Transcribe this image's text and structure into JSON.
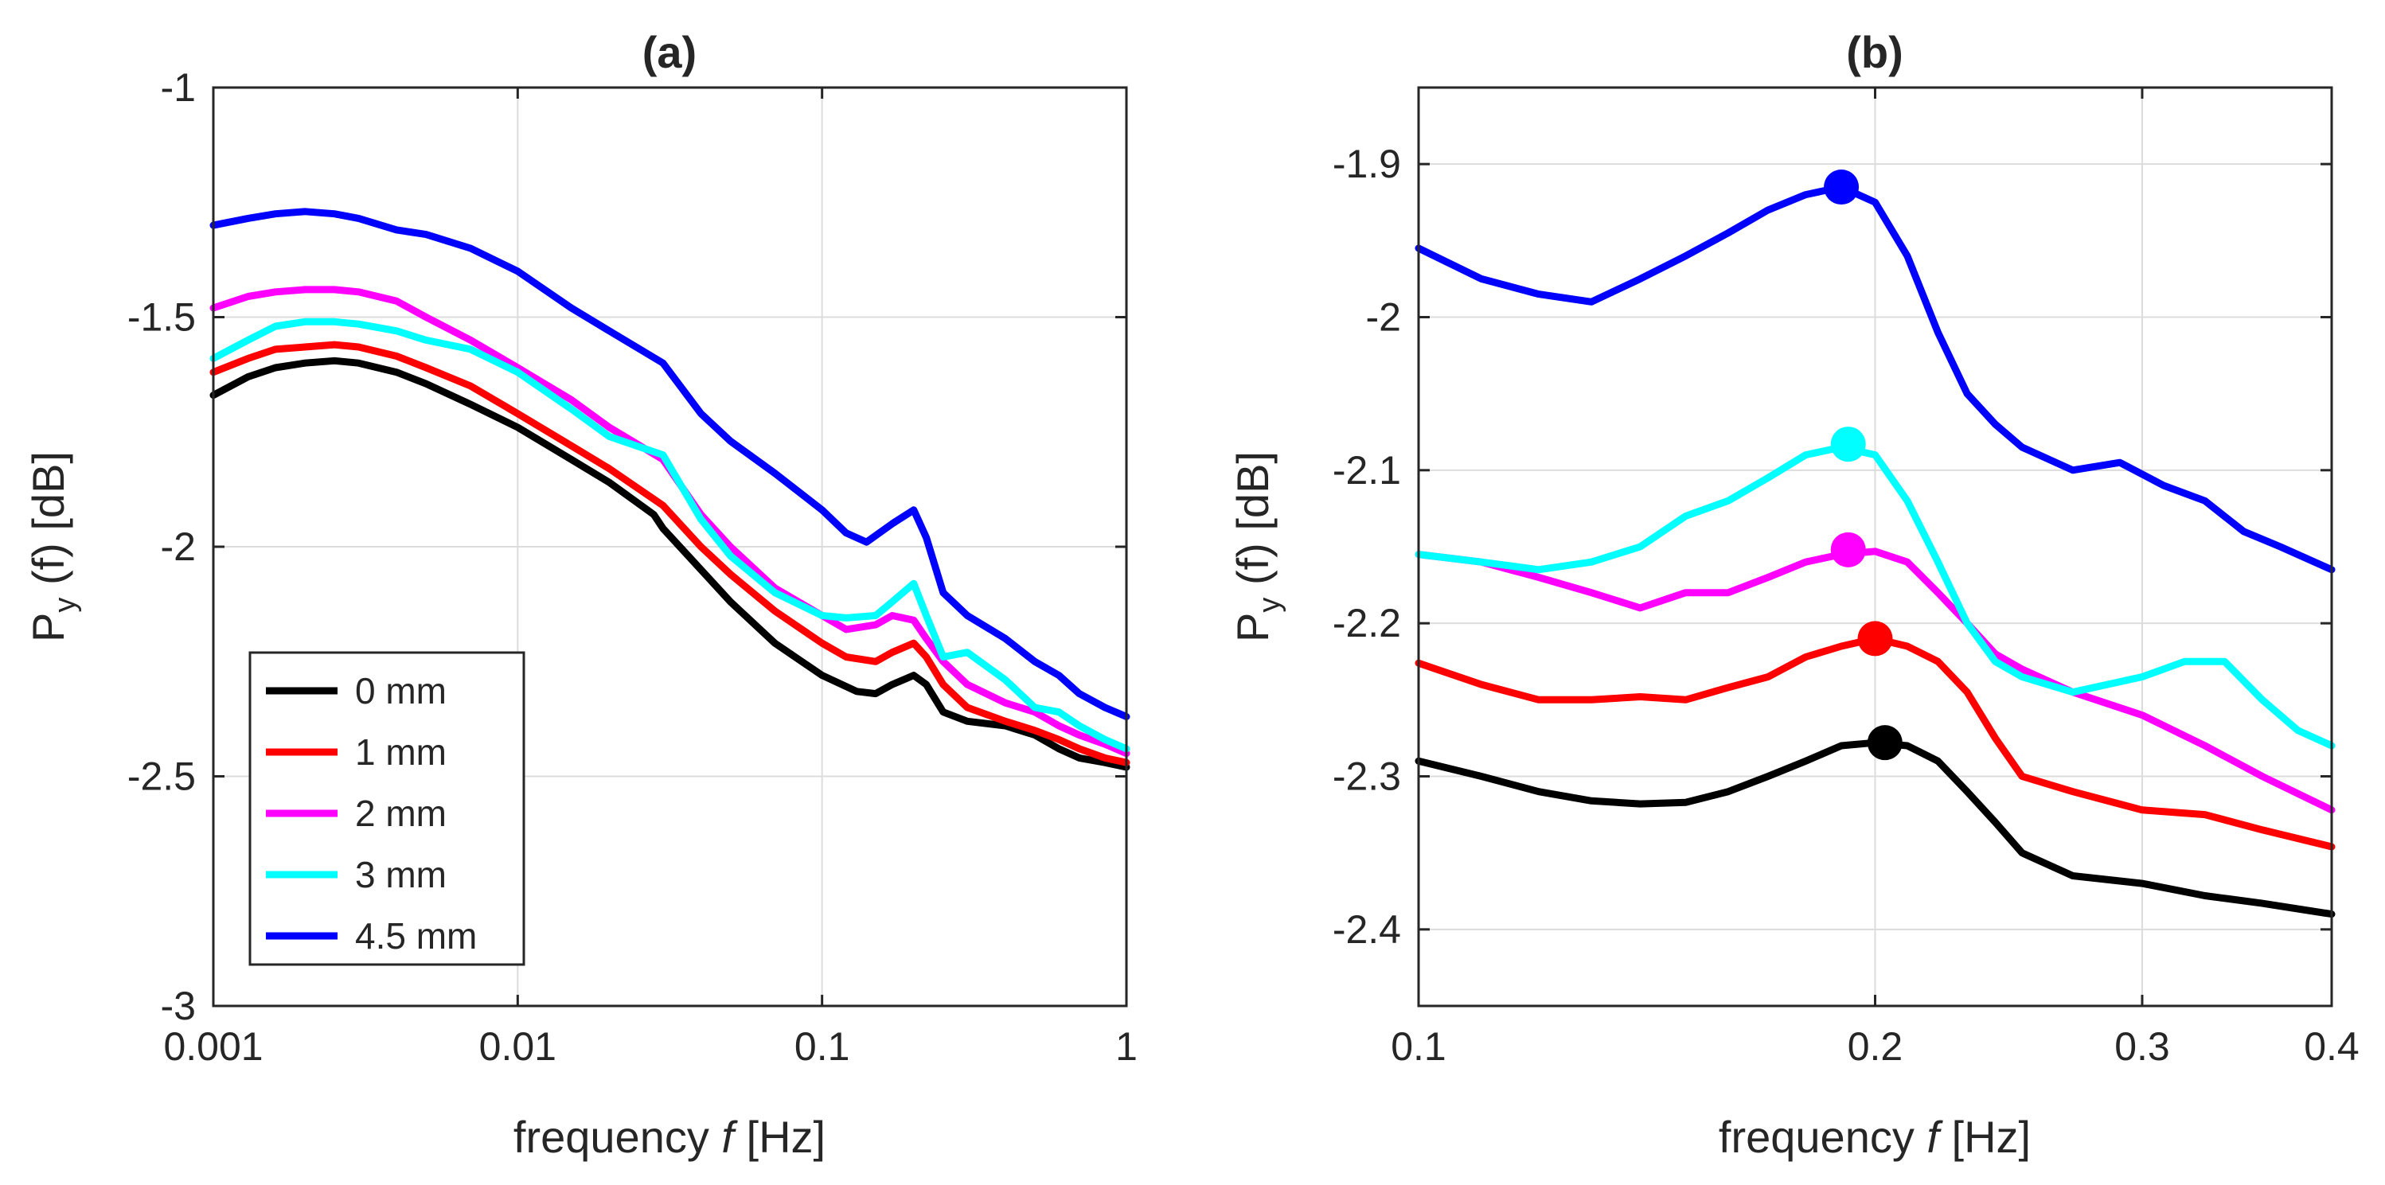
{
  "chart_data": [
    {
      "type": "line",
      "title": "(a)",
      "xscale": "log",
      "xlabel": "frequency",
      "xlabel_var": "f",
      "xlabel_unit": "[Hz]",
      "ylabel_main": "P",
      "ylabel_sub": "y",
      "ylabel_rest": " (f) [dB]",
      "xlim": [
        0.001,
        1
      ],
      "ylim": [
        -3,
        -1
      ],
      "xticks": [
        0.001,
        0.01,
        0.1,
        1
      ],
      "xtick_labels": [
        "0.001",
        "0.01",
        "0.1",
        "1"
      ],
      "yticks": [
        -3,
        -2.5,
        -2,
        -1.5,
        -1
      ],
      "ytick_labels": [
        "-3",
        "-2.5",
        "-2",
        "-1.5",
        "-1"
      ],
      "grid": true,
      "legend_position": "bottom-left",
      "series": [
        {
          "name": "0 mm",
          "color": "#000000",
          "x": [
            0.001,
            0.0013,
            0.0016,
            0.002,
            0.0025,
            0.003,
            0.004,
            0.005,
            0.007,
            0.01,
            0.015,
            0.02,
            0.028,
            0.03,
            0.04,
            0.05,
            0.07,
            0.1,
            0.13,
            0.15,
            0.17,
            0.2,
            0.22,
            0.25,
            0.3,
            0.4,
            0.5,
            0.6,
            0.7,
            0.85,
            1.0
          ],
          "y": [
            -1.67,
            -1.63,
            -1.61,
            -1.6,
            -1.595,
            -1.6,
            -1.62,
            -1.645,
            -1.69,
            -1.74,
            -1.81,
            -1.86,
            -1.93,
            -1.96,
            -2.05,
            -2.12,
            -2.21,
            -2.28,
            -2.315,
            -2.32,
            -2.3,
            -2.28,
            -2.3,
            -2.36,
            -2.38,
            -2.39,
            -2.41,
            -2.44,
            -2.46,
            -2.47,
            -2.48
          ]
        },
        {
          "name": "1 mm",
          "color": "#ff0000",
          "x": [
            0.001,
            0.0013,
            0.0016,
            0.002,
            0.0025,
            0.003,
            0.004,
            0.005,
            0.007,
            0.01,
            0.015,
            0.02,
            0.03,
            0.04,
            0.05,
            0.07,
            0.1,
            0.12,
            0.15,
            0.17,
            0.2,
            0.22,
            0.25,
            0.3,
            0.4,
            0.5,
            0.6,
            0.7,
            0.85,
            1.0
          ],
          "y": [
            -1.62,
            -1.59,
            -1.57,
            -1.565,
            -1.56,
            -1.565,
            -1.585,
            -1.61,
            -1.65,
            -1.71,
            -1.78,
            -1.83,
            -1.91,
            -2.0,
            -2.06,
            -2.14,
            -2.21,
            -2.24,
            -2.25,
            -2.23,
            -2.21,
            -2.24,
            -2.3,
            -2.35,
            -2.38,
            -2.4,
            -2.42,
            -2.44,
            -2.46,
            -2.47
          ]
        },
        {
          "name": "2 mm",
          "color": "#ff00ff",
          "x": [
            0.001,
            0.0013,
            0.0016,
            0.002,
            0.0025,
            0.003,
            0.004,
            0.005,
            0.007,
            0.01,
            0.015,
            0.02,
            0.03,
            0.04,
            0.05,
            0.07,
            0.1,
            0.12,
            0.15,
            0.17,
            0.2,
            0.22,
            0.25,
            0.3,
            0.4,
            0.5,
            0.6,
            0.7,
            0.85,
            1.0
          ],
          "y": [
            -1.48,
            -1.455,
            -1.445,
            -1.44,
            -1.44,
            -1.445,
            -1.465,
            -1.5,
            -1.55,
            -1.61,
            -1.68,
            -1.74,
            -1.81,
            -1.93,
            -2.0,
            -2.09,
            -2.15,
            -2.18,
            -2.17,
            -2.15,
            -2.16,
            -2.2,
            -2.25,
            -2.3,
            -2.34,
            -2.36,
            -2.39,
            -2.41,
            -2.43,
            -2.45
          ]
        },
        {
          "name": "3 mm",
          "color": "#00ffff",
          "x": [
            0.001,
            0.0013,
            0.0016,
            0.002,
            0.0025,
            0.003,
            0.004,
            0.005,
            0.007,
            0.01,
            0.015,
            0.02,
            0.03,
            0.04,
            0.05,
            0.07,
            0.1,
            0.12,
            0.15,
            0.17,
            0.2,
            0.22,
            0.25,
            0.3,
            0.4,
            0.5,
            0.6,
            0.7,
            0.85,
            1.0
          ],
          "y": [
            -1.59,
            -1.55,
            -1.52,
            -1.51,
            -1.51,
            -1.515,
            -1.53,
            -1.55,
            -1.57,
            -1.62,
            -1.7,
            -1.76,
            -1.8,
            -1.94,
            -2.02,
            -2.1,
            -2.15,
            -2.155,
            -2.15,
            -2.12,
            -2.08,
            -2.15,
            -2.24,
            -2.23,
            -2.29,
            -2.35,
            -2.36,
            -2.39,
            -2.42,
            -2.44
          ]
        },
        {
          "name": "4.5 mm",
          "color": "#0000ff",
          "x": [
            0.001,
            0.0013,
            0.0016,
            0.002,
            0.0025,
            0.003,
            0.004,
            0.005,
            0.007,
            0.01,
            0.015,
            0.02,
            0.03,
            0.04,
            0.05,
            0.07,
            0.1,
            0.12,
            0.14,
            0.17,
            0.2,
            0.22,
            0.25,
            0.3,
            0.4,
            0.5,
            0.6,
            0.7,
            0.85,
            1.0
          ],
          "y": [
            -1.3,
            -1.285,
            -1.275,
            -1.27,
            -1.275,
            -1.285,
            -1.31,
            -1.32,
            -1.35,
            -1.4,
            -1.48,
            -1.53,
            -1.6,
            -1.71,
            -1.77,
            -1.84,
            -1.92,
            -1.97,
            -1.99,
            -1.95,
            -1.92,
            -1.98,
            -2.1,
            -2.15,
            -2.2,
            -2.25,
            -2.28,
            -2.32,
            -2.35,
            -2.37
          ]
        }
      ]
    },
    {
      "type": "line",
      "title": "(b)",
      "xscale": "log",
      "xlabel": "frequency",
      "xlabel_var": "f",
      "xlabel_unit": "[Hz]",
      "ylabel_main": "P",
      "ylabel_sub": "y",
      "ylabel_rest": " (f) [dB]",
      "xlim": [
        0.1,
        0.4
      ],
      "ylim": [
        -2.45,
        -1.85
      ],
      "xticks": [
        0.1,
        0.2,
        0.3,
        0.4
      ],
      "xtick_labels": [
        "0.1",
        "0.2",
        "0.3",
        "0.4"
      ],
      "yticks": [
        -2.4,
        -2.3,
        -2.2,
        -2.1,
        -2.0,
        -1.9
      ],
      "ytick_labels": [
        "-2.4",
        "-2.3",
        "-2.2",
        "-2.1",
        "-2",
        "-1.9"
      ],
      "grid": true,
      "series": [
        {
          "name": "0 mm",
          "color": "#000000",
          "x": [
            0.1,
            0.11,
            0.12,
            0.13,
            0.14,
            0.15,
            0.16,
            0.17,
            0.18,
            0.19,
            0.2,
            0.21,
            0.22,
            0.23,
            0.24,
            0.25,
            0.27,
            0.3,
            0.33,
            0.36,
            0.4
          ],
          "y": [
            -2.29,
            -2.3,
            -2.31,
            -2.316,
            -2.318,
            -2.317,
            -2.31,
            -2.3,
            -2.29,
            -2.28,
            -2.278,
            -2.28,
            -2.29,
            -2.31,
            -2.33,
            -2.35,
            -2.365,
            -2.37,
            -2.378,
            -2.383,
            -2.39
          ],
          "peak": {
            "x": 0.203,
            "y": -2.278
          }
        },
        {
          "name": "1 mm",
          "color": "#ff0000",
          "x": [
            0.1,
            0.11,
            0.12,
            0.13,
            0.14,
            0.15,
            0.16,
            0.17,
            0.18,
            0.19,
            0.2,
            0.21,
            0.22,
            0.23,
            0.24,
            0.25,
            0.27,
            0.3,
            0.33,
            0.36,
            0.4
          ],
          "y": [
            -2.226,
            -2.24,
            -2.25,
            -2.25,
            -2.248,
            -2.25,
            -2.242,
            -2.235,
            -2.222,
            -2.215,
            -2.21,
            -2.215,
            -2.225,
            -2.245,
            -2.275,
            -2.3,
            -2.31,
            -2.322,
            -2.325,
            -2.335,
            -2.346
          ],
          "peak": {
            "x": 0.2,
            "y": -2.21
          }
        },
        {
          "name": "2 mm",
          "color": "#ff00ff",
          "x": [
            0.1,
            0.11,
            0.12,
            0.13,
            0.14,
            0.15,
            0.16,
            0.17,
            0.18,
            0.19,
            0.2,
            0.21,
            0.22,
            0.23,
            0.24,
            0.25,
            0.27,
            0.3,
            0.33,
            0.36,
            0.4
          ],
          "y": [
            -2.155,
            -2.16,
            -2.17,
            -2.18,
            -2.19,
            -2.18,
            -2.18,
            -2.17,
            -2.16,
            -2.155,
            -2.153,
            -2.16,
            -2.18,
            -2.2,
            -2.22,
            -2.23,
            -2.245,
            -2.26,
            -2.28,
            -2.3,
            -2.322
          ],
          "peak": {
            "x": 0.192,
            "y": -2.152
          }
        },
        {
          "name": "3 mm",
          "color": "#00ffff",
          "x": [
            0.1,
            0.11,
            0.12,
            0.13,
            0.14,
            0.15,
            0.16,
            0.17,
            0.18,
            0.19,
            0.2,
            0.21,
            0.22,
            0.23,
            0.24,
            0.25,
            0.27,
            0.3,
            0.32,
            0.34,
            0.36,
            0.38,
            0.4
          ],
          "y": [
            -2.155,
            -2.16,
            -2.165,
            -2.16,
            -2.15,
            -2.13,
            -2.12,
            -2.105,
            -2.09,
            -2.085,
            -2.09,
            -2.12,
            -2.16,
            -2.2,
            -2.225,
            -2.235,
            -2.245,
            -2.235,
            -2.225,
            -2.225,
            -2.25,
            -2.27,
            -2.28
          ],
          "peak": {
            "x": 0.192,
            "y": -2.083
          }
        },
        {
          "name": "4.5 mm",
          "color": "#0000ff",
          "x": [
            0.1,
            0.11,
            0.12,
            0.13,
            0.14,
            0.15,
            0.16,
            0.17,
            0.18,
            0.19,
            0.2,
            0.21,
            0.22,
            0.23,
            0.24,
            0.25,
            0.27,
            0.29,
            0.31,
            0.33,
            0.35,
            0.37,
            0.4
          ],
          "y": [
            -1.955,
            -1.975,
            -1.985,
            -1.99,
            -1.975,
            -1.96,
            -1.945,
            -1.93,
            -1.92,
            -1.915,
            -1.925,
            -1.96,
            -2.01,
            -2.05,
            -2.07,
            -2.085,
            -2.1,
            -2.095,
            -2.11,
            -2.12,
            -2.14,
            -2.15,
            -2.165
          ],
          "peak": {
            "x": 0.19,
            "y": -1.915
          }
        }
      ]
    }
  ]
}
